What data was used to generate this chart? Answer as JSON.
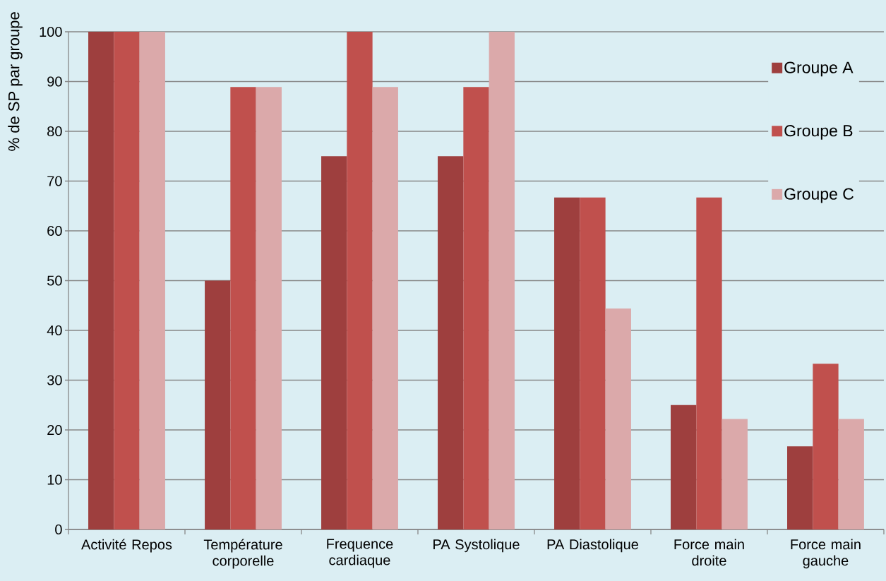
{
  "chart_data": {
    "type": "bar",
    "ylabel": "% de SP par groupe",
    "categories": [
      "Activité Repos",
      "Température corporelle",
      "Frequence cardiaque",
      "PA Systolique",
      "PA Diastolique",
      "Force main droite",
      "Force main gauche"
    ],
    "series": [
      {
        "name": "Groupe A",
        "color": "#9e3f3e",
        "values": [
          100,
          50,
          75,
          75,
          66.7,
          25,
          16.7
        ]
      },
      {
        "name": "Groupe B",
        "color": "#c0504d",
        "values": [
          100,
          88.9,
          100,
          88.9,
          66.7,
          66.7,
          33.3
        ]
      },
      {
        "name": "Groupe C",
        "color": "#dba9aa",
        "values": [
          100,
          88.9,
          88.9,
          100,
          44.4,
          22.2,
          22.2
        ]
      }
    ],
    "ylim": [
      0,
      100
    ],
    "yticks": [
      0,
      10,
      20,
      30,
      40,
      50,
      60,
      70,
      80,
      90,
      100
    ],
    "grid": "y",
    "legend": "top right"
  }
}
